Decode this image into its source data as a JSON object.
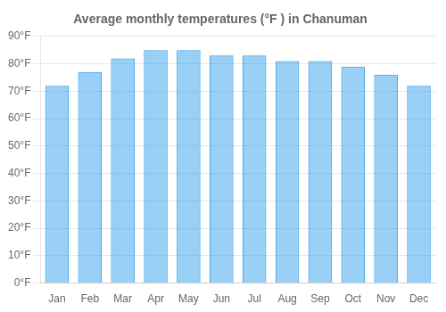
{
  "chart_data": {
    "type": "bar",
    "title": "Average monthly temperatures (°F ) in Chanuman",
    "categories": [
      "Jan",
      "Feb",
      "Mar",
      "Apr",
      "May",
      "Jun",
      "Jul",
      "Aug",
      "Sep",
      "Oct",
      "Nov",
      "Dec"
    ],
    "values": [
      72,
      77,
      82,
      85,
      85,
      83,
      83,
      81,
      81,
      79,
      76,
      72
    ],
    "ylim": [
      0,
      90
    ],
    "yticks": [
      {
        "value": 0,
        "label": "0°F"
      },
      {
        "value": 10,
        "label": "10°F"
      },
      {
        "value": 20,
        "label": "20°F"
      },
      {
        "value": 30,
        "label": "30°F"
      },
      {
        "value": 40,
        "label": "40°F"
      },
      {
        "value": 50,
        "label": "50°F"
      },
      {
        "value": 60,
        "label": "60°F"
      },
      {
        "value": 70,
        "label": "70°F"
      },
      {
        "value": 80,
        "label": "80°F"
      },
      {
        "value": 90,
        "label": "90°F"
      }
    ],
    "grid": true
  }
}
